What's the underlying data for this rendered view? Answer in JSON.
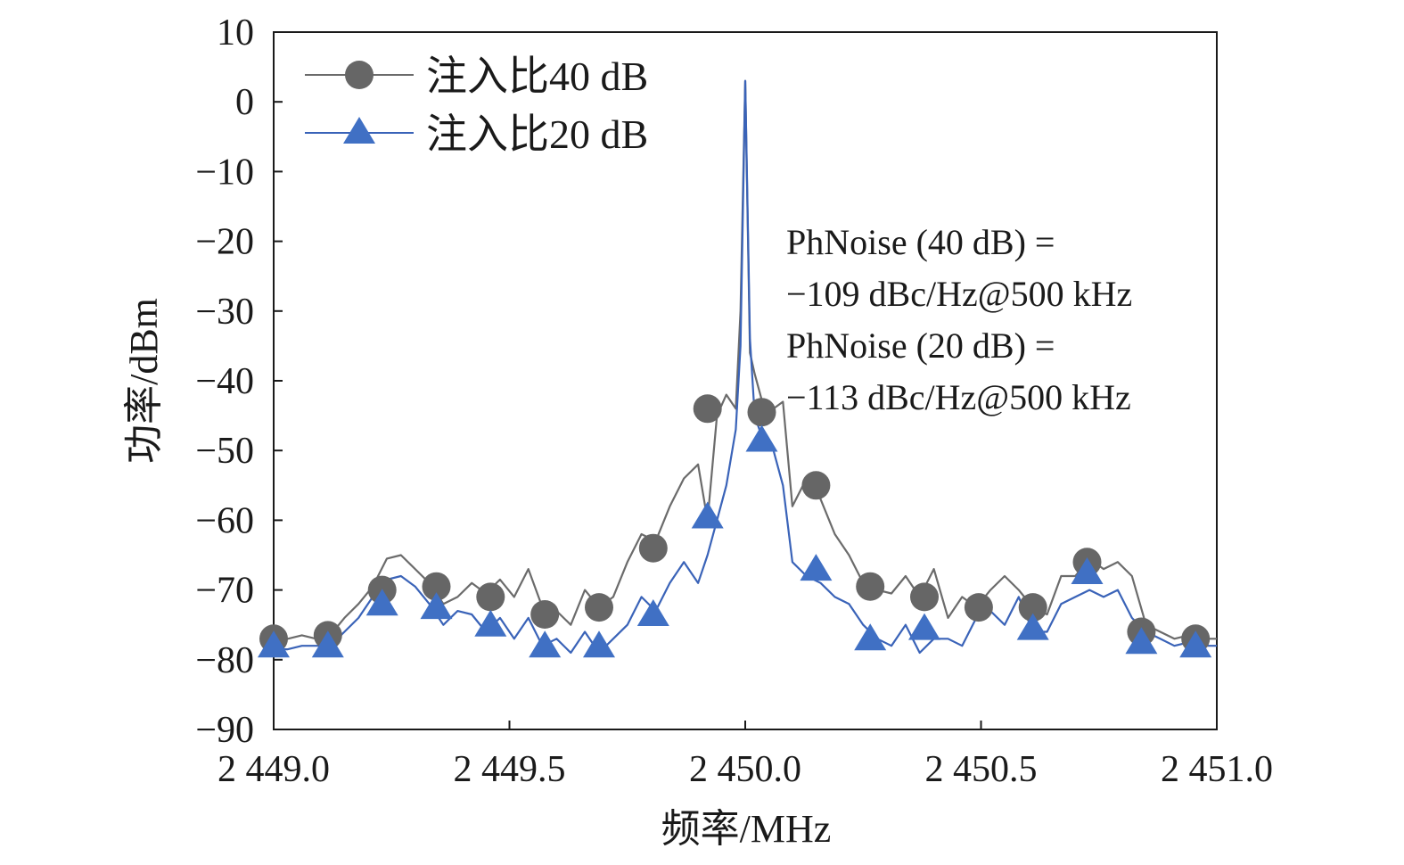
{
  "chart_data": {
    "type": "line",
    "title": "",
    "xlabel": "频率/MHz",
    "ylabel": "功率/dBm",
    "xlim": [
      2449.0,
      2451.0
    ],
    "ylim": [
      -90,
      10
    ],
    "x_ticks": [
      2449.0,
      2449.5,
      2450.0,
      2450.5,
      2451.0
    ],
    "x_tick_labels": [
      "2 449.0",
      "2 449.5",
      "2 450.0",
      "2 450.5",
      "2 451.0"
    ],
    "y_ticks": [
      10,
      0,
      -10,
      -20,
      -30,
      -40,
      -50,
      -60,
      -70,
      -80,
      -90
    ],
    "y_tick_labels": [
      "10",
      "0",
      "−10",
      "−20",
      "−30",
      "−40",
      "−50",
      "−60",
      "−70",
      "−80",
      "−90"
    ],
    "grid": false,
    "legend_position": "top-left",
    "series": [
      {
        "name": "注入比40 dB",
        "color": "#6b6b6b",
        "marker": "circle",
        "x": [
          2449.0,
          2449.03,
          2449.06,
          2449.09,
          2449.12,
          2449.15,
          2449.18,
          2449.21,
          2449.24,
          2449.27,
          2449.3,
          2449.33,
          2449.36,
          2449.39,
          2449.42,
          2449.45,
          2449.48,
          2449.51,
          2449.54,
          2449.57,
          2449.6,
          2449.63,
          2449.66,
          2449.69,
          2449.72,
          2449.75,
          2449.78,
          2449.81,
          2449.84,
          2449.87,
          2449.9,
          2449.92,
          2449.94,
          2449.96,
          2449.98,
          2449.99,
          2450.0,
          2450.01,
          2450.02,
          2450.04,
          2450.06,
          2450.08,
          2450.1,
          2450.13,
          2450.16,
          2450.19,
          2450.22,
          2450.25,
          2450.28,
          2450.31,
          2450.34,
          2450.37,
          2450.4,
          2450.43,
          2450.46,
          2450.49,
          2450.52,
          2450.55,
          2450.58,
          2450.61,
          2450.64,
          2450.67,
          2450.7,
          2450.73,
          2450.76,
          2450.79,
          2450.82,
          2450.85,
          2450.88,
          2450.91,
          2450.94,
          2450.97,
          2451.0
        ],
        "y": [
          -77,
          -77,
          -76.5,
          -77,
          -76.5,
          -74,
          -72,
          -69.5,
          -65.5,
          -65,
          -67,
          -69,
          -72,
          -71,
          -69,
          -70.5,
          -68.5,
          -71,
          -67,
          -72.5,
          -73,
          -75,
          -70,
          -72.5,
          -71,
          -66,
          -62,
          -63,
          -58,
          -54,
          -52,
          -60,
          -45,
          -42,
          -44,
          -30,
          3,
          -36,
          -39,
          -44,
          -44,
          -43,
          -58,
          -54,
          -57,
          -62,
          -65,
          -69,
          -70,
          -70.5,
          -68,
          -71,
          -67,
          -74,
          -71,
          -72.5,
          -70,
          -68,
          -70,
          -72.5,
          -73.5,
          -68,
          -68,
          -65.5,
          -67,
          -66,
          -68,
          -75,
          -76,
          -77,
          -76.5,
          -77,
          -77
        ]
      },
      {
        "name": "注入比20 dB",
        "color": "#3a63b8",
        "marker": "triangle",
        "x": [
          2449.0,
          2449.03,
          2449.06,
          2449.09,
          2449.12,
          2449.15,
          2449.18,
          2449.21,
          2449.24,
          2449.27,
          2449.3,
          2449.33,
          2449.36,
          2449.39,
          2449.42,
          2449.45,
          2449.48,
          2449.51,
          2449.54,
          2449.57,
          2449.6,
          2449.63,
          2449.66,
          2449.69,
          2449.72,
          2449.75,
          2449.78,
          2449.81,
          2449.84,
          2449.87,
          2449.9,
          2449.92,
          2449.94,
          2449.96,
          2449.98,
          2449.99,
          2450.0,
          2450.01,
          2450.02,
          2450.04,
          2450.06,
          2450.08,
          2450.1,
          2450.13,
          2450.16,
          2450.19,
          2450.22,
          2450.25,
          2450.28,
          2450.31,
          2450.34,
          2450.37,
          2450.4,
          2450.43,
          2450.46,
          2450.49,
          2450.52,
          2450.55,
          2450.58,
          2450.61,
          2450.64,
          2450.67,
          2450.7,
          2450.73,
          2450.76,
          2450.79,
          2450.82,
          2450.85,
          2450.88,
          2450.91,
          2450.94,
          2450.97,
          2451.0
        ],
        "y": [
          -78.5,
          -78.5,
          -78,
          -78,
          -78,
          -76,
          -74,
          -71,
          -68.5,
          -68,
          -69.5,
          -72,
          -75,
          -73,
          -73.5,
          -76,
          -74,
          -77,
          -74,
          -78,
          -77,
          -79,
          -76,
          -79,
          -77,
          -75,
          -71,
          -73,
          -69,
          -66,
          -69,
          -65,
          -60,
          -55,
          -47,
          -35,
          3,
          -34,
          -45,
          -49,
          -50,
          -55,
          -66,
          -68,
          -69,
          -71,
          -72,
          -75,
          -77,
          -78,
          -75,
          -79,
          -77,
          -77,
          -78,
          -74,
          -73,
          -75,
          -71,
          -76,
          -76,
          -72,
          -71,
          -70,
          -71,
          -70,
          -74,
          -76,
          -77,
          -78,
          -77.5,
          -78,
          -78
        ]
      }
    ],
    "marker_points": [
      {
        "series": "注入比40 dB",
        "x": [
          2449.0,
          2449.115,
          2449.23,
          2449.345,
          2449.46,
          2449.575,
          2449.69,
          2449.805,
          2449.92,
          2450.035,
          2450.15,
          2450.265,
          2450.38,
          2450.495,
          2450.61,
          2450.725,
          2450.84,
          2450.955
        ],
        "y": [
          -77,
          -76.5,
          -70,
          -69.5,
          -71,
          -73.5,
          -72.5,
          -64,
          -44,
          -44.5,
          -55,
          -69.5,
          -71,
          -72.5,
          -72.5,
          -66,
          -76,
          -77
        ]
      },
      {
        "series": "注入比20 dB",
        "x": [
          2449.0,
          2449.115,
          2449.23,
          2449.345,
          2449.46,
          2449.575,
          2449.69,
          2449.805,
          2449.92,
          2450.035,
          2450.15,
          2450.265,
          2450.38,
          2450.495,
          2450.61,
          2450.725,
          2450.84,
          2450.955
        ],
        "y": [
          -78,
          -78,
          -72,
          -72.5,
          -75,
          -78,
          -78,
          -73.5,
          -59.5,
          -48.5,
          -67,
          -77,
          -75.5,
          null,
          -75.5,
          -67.5,
          -77.5,
          -78
        ]
      }
    ],
    "annotations": [
      "PhNoise (40 dB) =",
      "−109 dBc/Hz@500 kHz",
      "PhNoise (20 dB) =",
      "−113 dBc/Hz@500 kHz"
    ]
  }
}
